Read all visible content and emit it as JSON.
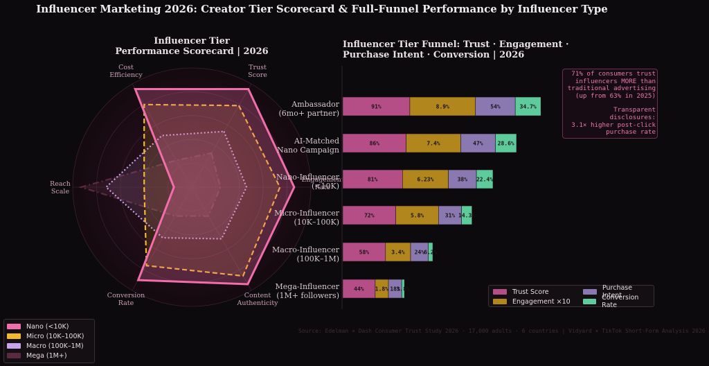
{
  "title": "Influencer Marketing 2026: Creator Tier Scorecard & Full-Funnel Performance by Influencer Type",
  "source": "Source: Edelman × Dash Consumer Trust Study 2026 · 17,000 adults · 6 countries  |  Vidyard × TikTok Short-Form Analysis 2026",
  "chart_data": [
    {
      "type": "radar",
      "title": "Influencer Tier\nPerformance Scorecard  |  2026",
      "axes": [
        "Trust\nScore",
        "Engagement\nRate",
        "Content\nAuthenticity",
        "Conversion\nRate",
        "Reach\nScale",
        "Cost\nEfficiency"
      ],
      "rlim": [
        0,
        10
      ],
      "series": [
        {
          "name": "Nano  (<10K)",
          "color": "#f06ea9",
          "style": "solid",
          "values": [
            9.5,
            8.6,
            9.4,
            9.0,
            1.5,
            9.5
          ]
        },
        {
          "name": "Micro  (10K–100K)",
          "color": "#f4b82c",
          "style": "dashed",
          "values": [
            7.9,
            7.4,
            8.6,
            7.6,
            4.0,
            8.0
          ]
        },
        {
          "name": "Macro  (100K–1M)",
          "color": "#c7a4ea",
          "style": "dotted",
          "values": [
            5.4,
            4.6,
            5.0,
            4.9,
            7.2,
            5.0
          ]
        },
        {
          "name": "Mega  (1M+)",
          "color": "#5a2a40",
          "style": "dashdot",
          "values": [
            3.3,
            2.4,
            2.8,
            2.8,
            9.3,
            2.6
          ]
        }
      ]
    },
    {
      "type": "bar",
      "orientation": "horizontal-stacked",
      "title": "Influencer Tier Funnel: Trust · Engagement ·\nPurchase Intent · Conversion  |  2026",
      "categories": [
        "Ambassador\n(6mo+ partner)",
        "AI-Matched\nNano Campaign",
        "Nano-Influencer\n(<10K)",
        "Micro-Influencer\n(10K–100K)",
        "Macro-Influencer\n(100K–1M)",
        "Mega-Influencer\n(1M+ followers)"
      ],
      "series": [
        {
          "name": "Trust Score",
          "color": "#b54d86",
          "values": [
            91,
            86,
            81,
            72,
            58,
            44
          ],
          "labels": [
            "91%",
            "86%",
            "81%",
            "72%",
            "58%",
            "44%"
          ]
        },
        {
          "name": "Engagement ×10",
          "color": "#b1861c",
          "values": [
            89,
            74,
            62.3,
            58,
            34,
            18
          ],
          "labels": [
            "8.9%",
            "7.4%",
            "6.23%",
            "5.8%",
            "3.4%",
            "1.8%"
          ]
        },
        {
          "name": "Purchase Intent",
          "color": "#8a79b0",
          "values": [
            54,
            47,
            38,
            31,
            24,
            18
          ],
          "labels": [
            "54%",
            "47%",
            "38%",
            "31%",
            "24%",
            "18%"
          ]
        },
        {
          "name": "Conversion Rate",
          "color": "#5ecb9c",
          "values": [
            34.7,
            28.6,
            22.4,
            14.3,
            6.2,
            3.8
          ],
          "labels": [
            "34.7%",
            "28.6%",
            "22.4%",
            "14.3%",
            "6.2%",
            "3.8%"
          ]
        }
      ]
    }
  ],
  "callout": {
    "line1": "71% of consumers trust",
    "line2": "influencers MORE than",
    "line3": "traditional advertising",
    "line4": "(up from 63% in 2025)",
    "line5": "Transparent disclosures:",
    "line6": "3.1× higher post-click",
    "line7": "purchase rate"
  }
}
